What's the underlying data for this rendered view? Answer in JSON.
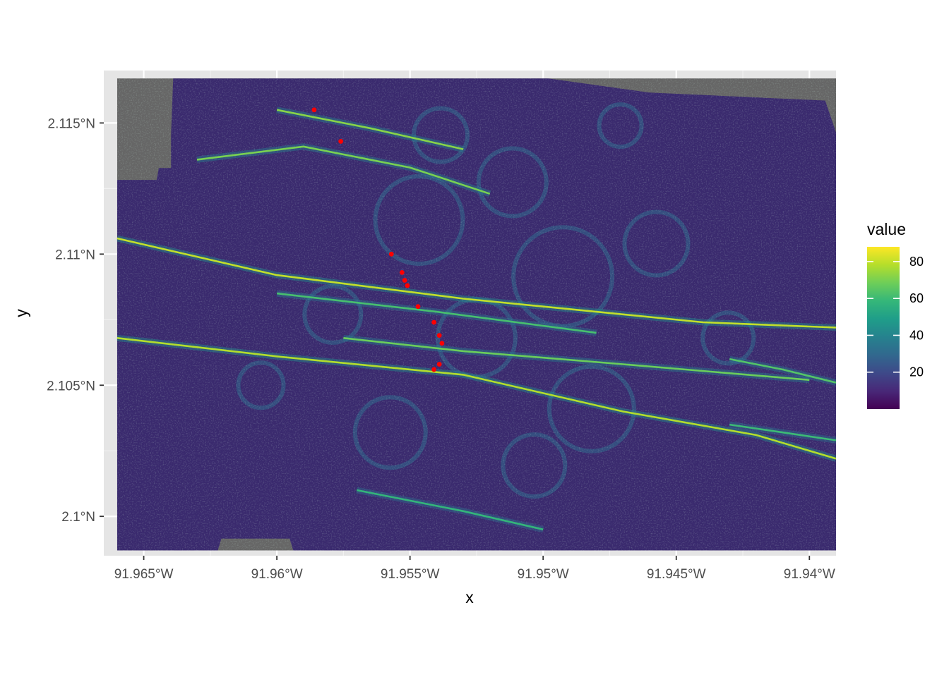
{
  "chart_data": {
    "type": "heatmap",
    "xlabel": "x",
    "ylabel": "y",
    "xlim": [
      -91.9665,
      -91.939
    ],
    "ylim": [
      2.0985,
      2.117
    ],
    "raster_extent": {
      "x": [
        -91.966,
        -91.939
      ],
      "y": [
        2.0987,
        2.1167
      ]
    },
    "x_ticks": [
      {
        "value": -91.965,
        "label": "91.965°W"
      },
      {
        "value": -91.96,
        "label": "91.96°W"
      },
      {
        "value": -91.955,
        "label": "91.955°W"
      },
      {
        "value": -91.95,
        "label": "91.95°W"
      },
      {
        "value": -91.945,
        "label": "91.945°W"
      },
      {
        "value": -91.94,
        "label": "91.94°W"
      }
    ],
    "y_ticks": [
      {
        "value": 2.1,
        "label": "2.1°N"
      },
      {
        "value": 2.105,
        "label": "2.105°N"
      },
      {
        "value": 2.11,
        "label": "2.11°N"
      },
      {
        "value": 2.115,
        "label": "2.115°N"
      }
    ],
    "legend": {
      "title": "value",
      "range": [
        0,
        88
      ],
      "ticks": [
        {
          "value": 20,
          "label": "20"
        },
        {
          "value": 40,
          "label": "40"
        },
        {
          "value": 60,
          "label": "60"
        },
        {
          "value": 80,
          "label": "80"
        }
      ],
      "colormap": [
        "#440154",
        "#482878",
        "#3e4989",
        "#31688e",
        "#26828e",
        "#1f9e89",
        "#35b779",
        "#6ece58",
        "#b5de2b",
        "#fde725"
      ],
      "placement": "right"
    },
    "na_color": "#666666",
    "ridges": [
      {
        "value": 80,
        "points": [
          [
            -91.966,
            2.1106
          ],
          [
            -91.96,
            2.1092
          ],
          [
            -91.953,
            2.1083
          ],
          [
            -91.948,
            2.1078
          ],
          [
            -91.944,
            2.1074
          ],
          [
            -91.939,
            2.1072
          ]
        ]
      },
      {
        "value": 78,
        "points": [
          [
            -91.966,
            2.1068
          ],
          [
            -91.96,
            2.1061
          ],
          [
            -91.953,
            2.1054
          ],
          [
            -91.947,
            2.104
          ],
          [
            -91.942,
            2.1031
          ],
          [
            -91.939,
            2.1022
          ]
        ]
      },
      {
        "value": 70,
        "points": [
          [
            -91.963,
            2.1136
          ],
          [
            -91.959,
            2.1141
          ],
          [
            -91.955,
            2.1133
          ],
          [
            -91.952,
            2.1123
          ]
        ]
      },
      {
        "value": 72,
        "points": [
          [
            -91.96,
            2.1155
          ],
          [
            -91.9565,
            2.1148
          ],
          [
            -91.953,
            2.114
          ]
        ]
      },
      {
        "value": 68,
        "points": [
          [
            -91.9575,
            2.1068
          ],
          [
            -91.953,
            2.1063
          ],
          [
            -91.947,
            2.1058
          ],
          [
            -91.94,
            2.1052
          ]
        ]
      },
      {
        "value": 62,
        "points": [
          [
            -91.96,
            2.1085
          ],
          [
            -91.954,
            2.1078
          ],
          [
            -91.948,
            2.107
          ]
        ]
      },
      {
        "value": 58,
        "points": [
          [
            -91.957,
            2.101
          ],
          [
            -91.953,
            2.1002
          ],
          [
            -91.95,
            2.0995
          ]
        ]
      },
      {
        "value": 60,
        "points": [
          [
            -91.943,
            2.1035
          ],
          [
            -91.941,
            2.1032
          ],
          [
            -91.939,
            2.1029
          ]
        ]
      },
      {
        "value": 64,
        "points": [
          [
            -91.943,
            2.106
          ],
          [
            -91.941,
            2.1056
          ],
          [
            -91.939,
            2.1051
          ]
        ]
      }
    ],
    "markers": {
      "color": "#ff0000",
      "points": [
        [
          -91.9586,
          2.1155
        ],
        [
          -91.9576,
          2.1143
        ],
        [
          -91.9557,
          2.11
        ],
        [
          -91.9553,
          2.1093
        ],
        [
          -91.9552,
          2.109
        ],
        [
          -91.9551,
          2.1088
        ],
        [
          -91.9547,
          2.108
        ],
        [
          -91.9541,
          2.1074
        ],
        [
          -91.9539,
          2.1069
        ],
        [
          -91.9538,
          2.1066
        ],
        [
          -91.9539,
          2.1058
        ],
        [
          -91.9541,
          2.1056
        ]
      ]
    }
  }
}
